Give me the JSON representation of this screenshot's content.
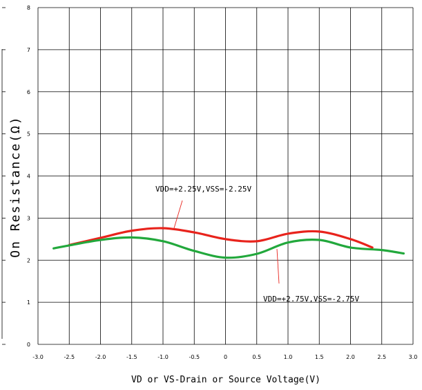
{
  "chart_data": {
    "type": "line",
    "xlabel": "VD or VS-Drain or Source Voltage(V)",
    "ylabel": "On Resistance(Ω)",
    "xlim": [
      -3.0,
      3.0
    ],
    "ylim": [
      0,
      8
    ],
    "x_ticks": [
      "-3.0",
      "-2.5",
      "-2.0",
      "-1.5",
      "-1.0",
      "-0.5",
      "0",
      "0.5",
      "1.0",
      "1.5",
      "2.0",
      "2.5",
      "3.0"
    ],
    "y_ticks": [
      "0",
      "1",
      "2",
      "3",
      "4",
      "5",
      "6",
      "7",
      "8"
    ],
    "grid": true,
    "series": [
      {
        "name": "VDD=+2.25V,VSS=-2.25V",
        "color": "#e8231c",
        "x": [
          -2.5,
          -2.0,
          -1.5,
          -1.0,
          -0.5,
          0.0,
          0.5,
          1.0,
          1.5,
          2.0,
          2.35
        ],
        "y": [
          2.36,
          2.53,
          2.7,
          2.76,
          2.66,
          2.5,
          2.45,
          2.63,
          2.68,
          2.5,
          2.3
        ]
      },
      {
        "name": "VDD=+2.75V,VSS=-2.75V",
        "color": "#22a83c",
        "x": [
          -2.75,
          -2.5,
          -2.0,
          -1.5,
          -1.0,
          -0.5,
          0.0,
          0.5,
          1.0,
          1.5,
          2.0,
          2.5,
          2.85
        ],
        "y": [
          2.28,
          2.35,
          2.48,
          2.54,
          2.45,
          2.22,
          2.06,
          2.15,
          2.42,
          2.48,
          2.3,
          2.24,
          2.16
        ]
      }
    ],
    "annotations": [
      {
        "text": "VDD=+2.25V,VSS=-2.25V",
        "series": 0
      },
      {
        "text": "VDD=+2.75V,VSS=-2.75V",
        "series": 1
      }
    ]
  }
}
